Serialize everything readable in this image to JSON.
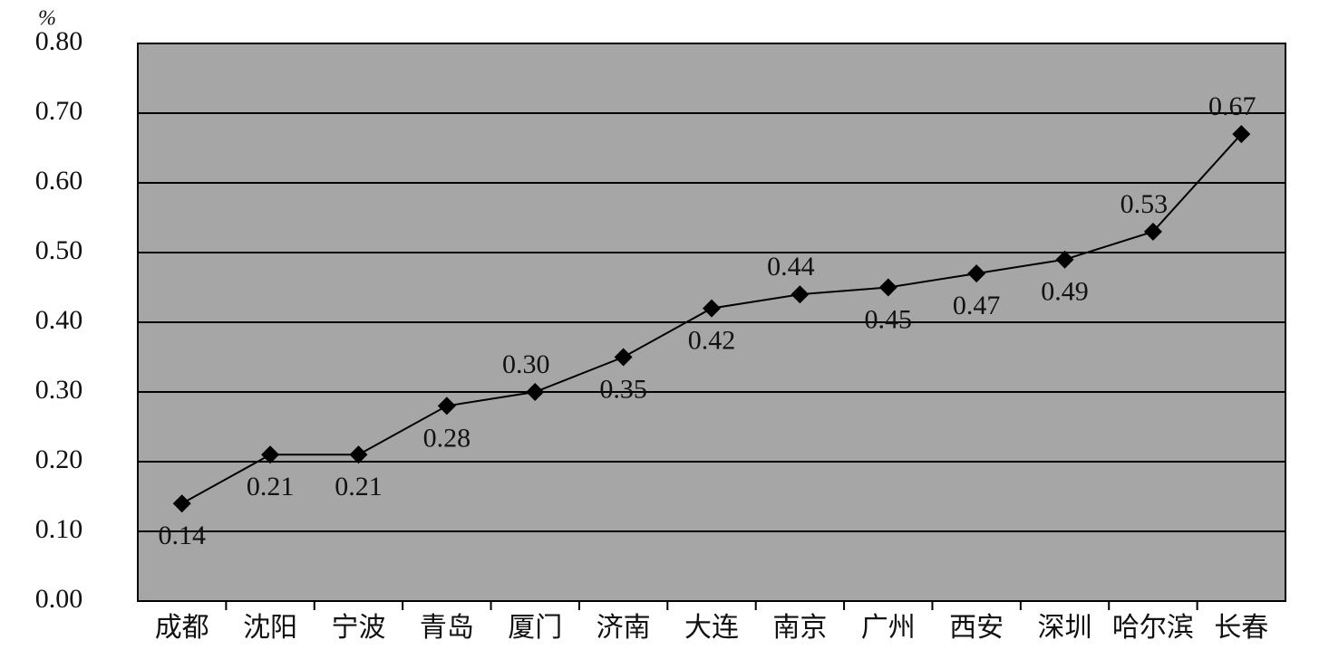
{
  "chart_data": {
    "type": "line",
    "y_label": "%",
    "categories": [
      "成都",
      "沈阳",
      "宁波",
      "青岛",
      "厦门",
      "济南",
      "大连",
      "南京",
      "广州",
      "西安",
      "深圳",
      "哈尔滨",
      "长春"
    ],
    "values": [
      0.14,
      0.21,
      0.21,
      0.28,
      0.3,
      0.35,
      0.42,
      0.44,
      0.45,
      0.47,
      0.49,
      0.53,
      0.67
    ],
    "value_labels": [
      "0.14",
      "0.21",
      "0.21",
      "0.28",
      "0.30",
      "0.35",
      "0.42",
      "0.44",
      "0.45",
      "0.47",
      "0.49",
      "0.53",
      "0.67"
    ],
    "color": "#000000",
    "background": "#a6a6a6",
    "ylim": [
      0,
      0.8
    ],
    "yticks": [
      {
        "value": 0,
        "label": "0.00"
      },
      {
        "value": 0.1,
        "label": "0.10"
      },
      {
        "value": 0.2,
        "label": "0.20"
      },
      {
        "value": 0.3,
        "label": "0.30"
      },
      {
        "value": 0.4,
        "label": "0.40"
      },
      {
        "value": 0.5,
        "label": "0.50"
      },
      {
        "value": 0.6,
        "label": "0.60"
      },
      {
        "value": 0.7,
        "label": "0.70"
      },
      {
        "value": 0.8,
        "label": "0.80"
      }
    ],
    "grid": true
  }
}
